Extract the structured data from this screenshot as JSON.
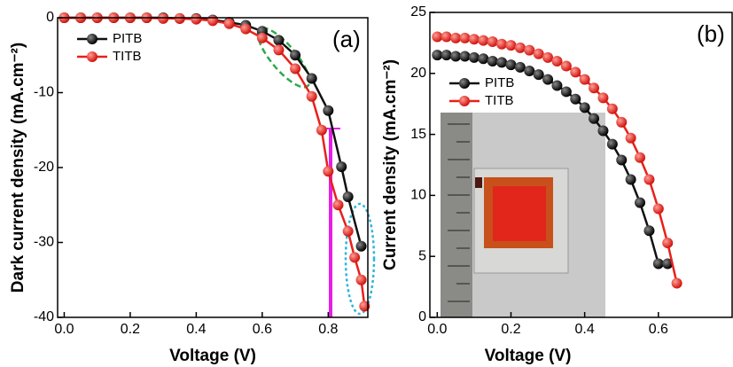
{
  "chart_data": [
    {
      "type": "line",
      "panel_label": "(a)",
      "x_label": "Voltage (V)",
      "y_label": "Dark current density (mA.cm⁻²)",
      "xlim": [
        -0.02,
        0.92
      ],
      "xticks": [
        {
          "value": 0,
          "label": "0.0"
        },
        0.2,
        0.4,
        0.6,
        0.8
      ],
      "ylim": [
        -40,
        0
      ],
      "yticks": [
        0,
        -10,
        -20,
        -30,
        -40
      ],
      "legend": "upper left",
      "series": [
        {
          "name": "PITB",
          "color": "#111111",
          "x": [
            0,
            0.05,
            0.1,
            0.15,
            0.2,
            0.25,
            0.3,
            0.35,
            0.4,
            0.45,
            0.5,
            0.55,
            0.6,
            0.65,
            0.7,
            0.75,
            0.8,
            0.84,
            0.86,
            0.9
          ],
          "values": [
            0,
            0,
            0,
            0,
            0,
            0,
            0,
            -0.1,
            -0.1,
            -0.3,
            -0.6,
            -1.0,
            -1.8,
            -3.0,
            -5.0,
            -8.1,
            -12.4,
            -19.9,
            -23.9,
            -30.5
          ]
        },
        {
          "name": "TITB",
          "color": "#e8201a",
          "x": [
            0,
            0.05,
            0.1,
            0.15,
            0.2,
            0.25,
            0.3,
            0.35,
            0.4,
            0.45,
            0.5,
            0.55,
            0.6,
            0.65,
            0.7,
            0.75,
            0.78,
            0.8,
            0.83,
            0.86,
            0.88,
            0.9,
            0.91
          ],
          "values": [
            0,
            0,
            0,
            0,
            0,
            0,
            -0.1,
            -0.1,
            -0.2,
            -0.4,
            -0.8,
            -1.5,
            -2.7,
            -4.3,
            -6.8,
            -10.5,
            -15.0,
            -20.5,
            -25.0,
            -28.5,
            -32.0,
            -35.0,
            -38.5
          ]
        }
      ]
    },
    {
      "type": "line",
      "panel_label": "(b)",
      "x_label": "Voltage (V)",
      "y_label": "Current density (mA.cm⁻²)",
      "xlim": [
        -0.02,
        0.8
      ],
      "xticks": [
        {
          "value": 0,
          "label": "0.0"
        },
        0.2,
        0.4,
        0.6
      ],
      "ylim": [
        0,
        25
      ],
      "yticks": [
        0,
        5,
        10,
        15,
        20,
        25
      ],
      "legend": "upper left",
      "series": [
        {
          "name": "PITB",
          "color": "#111111",
          "x": [
            0,
            0.025,
            0.05,
            0.075,
            0.1,
            0.125,
            0.15,
            0.175,
            0.2,
            0.225,
            0.25,
            0.275,
            0.3,
            0.325,
            0.35,
            0.375,
            0.4,
            0.425,
            0.45,
            0.475,
            0.5,
            0.525,
            0.55,
            0.575,
            0.6,
            0.625
          ],
          "values": [
            21.5,
            21.5,
            21.4,
            21.4,
            21.3,
            21.2,
            21.0,
            20.9,
            20.7,
            20.5,
            20.2,
            19.9,
            19.5,
            19.0,
            18.5,
            17.9,
            17.2,
            16.3,
            15.3,
            14.2,
            12.9,
            11.3,
            9.4,
            7.1,
            4.4,
            4.4
          ]
        },
        {
          "name": "TITB",
          "color": "#e8201a",
          "x": [
            0,
            0.025,
            0.05,
            0.075,
            0.1,
            0.125,
            0.15,
            0.175,
            0.2,
            0.225,
            0.25,
            0.275,
            0.3,
            0.325,
            0.35,
            0.375,
            0.4,
            0.425,
            0.45,
            0.475,
            0.5,
            0.525,
            0.55,
            0.575,
            0.6,
            0.625,
            0.65
          ],
          "values": [
            23.0,
            23.0,
            22.9,
            22.9,
            22.8,
            22.7,
            22.6,
            22.4,
            22.3,
            22.1,
            21.9,
            21.6,
            21.3,
            21.0,
            20.6,
            20.1,
            19.5,
            18.8,
            18.0,
            17.1,
            16.0,
            14.7,
            13.1,
            11.3,
            8.9,
            6.1,
            2.8
          ]
        }
      ]
    }
  ]
}
